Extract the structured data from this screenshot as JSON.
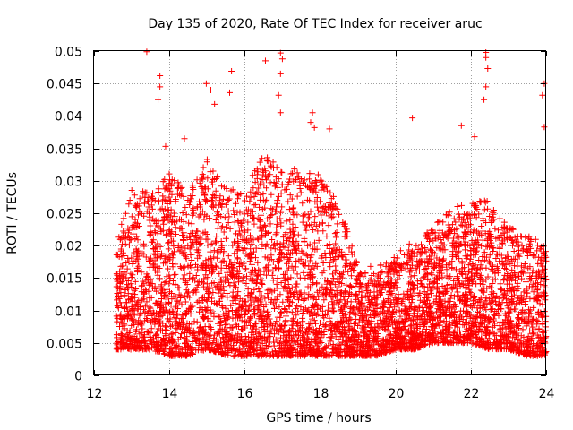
{
  "chart_data": {
    "type": "scatter",
    "title": "Day 135 of 2020, Rate Of TEC Index for receiver aruc",
    "xlabel": "GPS time / hours",
    "ylabel": "ROTI / TECUs",
    "xlim": [
      12,
      24
    ],
    "ylim": [
      0,
      0.05
    ],
    "grid": true,
    "marker": "+",
    "color": "#ff0000",
    "xticks": [
      "12",
      "14",
      "16",
      "18",
      "20",
      "22",
      "24"
    ],
    "yticks": [
      "0",
      "0.005",
      "0.01",
      "0.015",
      "0.02",
      "0.025",
      "0.03",
      "0.035",
      "0.04",
      "0.045",
      "0.05"
    ],
    "series": [
      {
        "name": "ROTI",
        "coverage_hours": [
          12.6,
          24.0
        ],
        "typical_envelope": [
          [
            12.6,
            0.004,
            0.02
          ],
          [
            13.0,
            0.004,
            0.028
          ],
          [
            13.5,
            0.004,
            0.027
          ],
          [
            14.0,
            0.003,
            0.03
          ],
          [
            14.5,
            0.003,
            0.027
          ],
          [
            15.0,
            0.004,
            0.032
          ],
          [
            15.5,
            0.003,
            0.028
          ],
          [
            16.0,
            0.003,
            0.027
          ],
          [
            16.5,
            0.003,
            0.033
          ],
          [
            17.0,
            0.003,
            0.03
          ],
          [
            17.5,
            0.003,
            0.031
          ],
          [
            18.0,
            0.003,
            0.03
          ],
          [
            18.5,
            0.003,
            0.025
          ],
          [
            19.0,
            0.003,
            0.017
          ],
          [
            19.5,
            0.003,
            0.016
          ],
          [
            20.0,
            0.004,
            0.018
          ],
          [
            20.5,
            0.004,
            0.02
          ],
          [
            21.0,
            0.005,
            0.022
          ],
          [
            21.5,
            0.005,
            0.025
          ],
          [
            22.0,
            0.005,
            0.026
          ],
          [
            22.5,
            0.004,
            0.026
          ],
          [
            23.0,
            0.004,
            0.022
          ],
          [
            23.5,
            0.003,
            0.021
          ],
          [
            24.0,
            0.003,
            0.019
          ]
        ],
        "notable_points": [
          {
            "x": 13.4,
            "y": 0.0499
          },
          {
            "x": 13.75,
            "y": 0.0462
          },
          {
            "x": 13.75,
            "y": 0.0445
          },
          {
            "x": 13.7,
            "y": 0.0425
          },
          {
            "x": 13.9,
            "y": 0.0353
          },
          {
            "x": 14.4,
            "y": 0.0365
          },
          {
            "x": 14.98,
            "y": 0.045
          },
          {
            "x": 15.1,
            "y": 0.044
          },
          {
            "x": 15.2,
            "y": 0.0418
          },
          {
            "x": 15.65,
            "y": 0.0469
          },
          {
            "x": 15.6,
            "y": 0.0436
          },
          {
            "x": 16.55,
            "y": 0.0485
          },
          {
            "x": 16.95,
            "y": 0.0497
          },
          {
            "x": 17.0,
            "y": 0.0488
          },
          {
            "x": 16.95,
            "y": 0.0465
          },
          {
            "x": 16.9,
            "y": 0.0432
          },
          {
            "x": 16.95,
            "y": 0.0405
          },
          {
            "x": 17.8,
            "y": 0.0405
          },
          {
            "x": 17.75,
            "y": 0.039
          },
          {
            "x": 17.85,
            "y": 0.0382
          },
          {
            "x": 18.25,
            "y": 0.038
          },
          {
            "x": 20.45,
            "y": 0.0397
          },
          {
            "x": 21.75,
            "y": 0.0385
          },
          {
            "x": 22.1,
            "y": 0.0368
          },
          {
            "x": 22.4,
            "y": 0.0498
          },
          {
            "x": 22.4,
            "y": 0.049
          },
          {
            "x": 22.45,
            "y": 0.0473
          },
          {
            "x": 22.4,
            "y": 0.0445
          },
          {
            "x": 22.35,
            "y": 0.0425
          },
          {
            "x": 23.95,
            "y": 0.045
          },
          {
            "x": 23.9,
            "y": 0.0432
          },
          {
            "x": 23.95,
            "y": 0.0383
          }
        ]
      }
    ]
  }
}
